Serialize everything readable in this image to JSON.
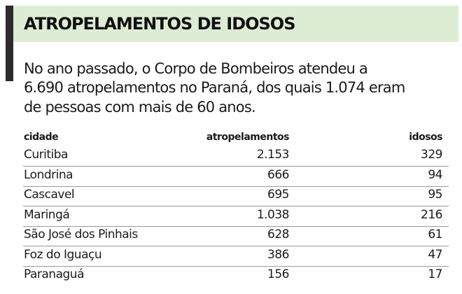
{
  "header": {
    "title": "ATROPELAMENTOS DE IDOSOS"
  },
  "intro": [
    "No ano passado, o Corpo de Bombeiros atendeu a",
    "6.690 atropelamentos no Paraná, dos quais 1.074 eram",
    "de pessoas com mais de 60 anos."
  ],
  "table": {
    "columns": [
      "cidade",
      "atropelamentos",
      "idosos"
    ],
    "rows": [
      [
        "Curitiba",
        "2.153",
        "329"
      ],
      [
        "Londrina",
        "666",
        "94"
      ],
      [
        "Cascavel",
        "695",
        "95"
      ],
      [
        "Maringá",
        "1.038",
        "216"
      ],
      [
        "São José dos Pinhais",
        "628",
        "61"
      ],
      [
        "Foz do Iguaçu",
        "386",
        "47"
      ],
      [
        "Paranaguá",
        "156",
        "17"
      ]
    ]
  }
}
